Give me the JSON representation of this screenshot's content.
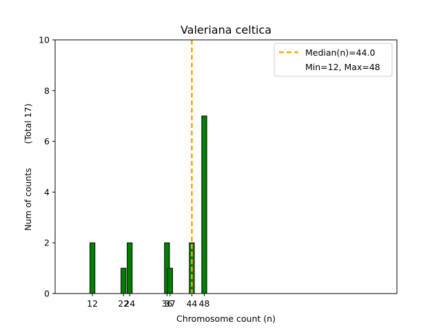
{
  "chart_data": {
    "type": "bar",
    "title": "Valeriana celtica",
    "xlabel": "Chromosome count (n)",
    "ylabel": "Num of counts",
    "ylabel_total": "(Total 17)",
    "ylim": [
      0,
      10
    ],
    "xlim": [
      0,
      110
    ],
    "yticks": [
      0,
      2,
      4,
      6,
      8,
      10
    ],
    "xticks": [
      12,
      22,
      24,
      36,
      37,
      44,
      48
    ],
    "xtick_labels": [
      "12",
      "22",
      "24",
      "36",
      "37",
      "44",
      "48"
    ],
    "categories": [
      12,
      22,
      24,
      36,
      37,
      44,
      48
    ],
    "values": [
      2,
      1,
      2,
      2,
      1,
      2,
      7
    ],
    "median": 44.0,
    "min": 12,
    "max": 48,
    "bar_color": "#008000",
    "median_color": "#FFA500",
    "legend": {
      "position": "top-right",
      "median_label": "Median(n)=44.0",
      "minmax_label": "Min=12, Max=48"
    }
  }
}
